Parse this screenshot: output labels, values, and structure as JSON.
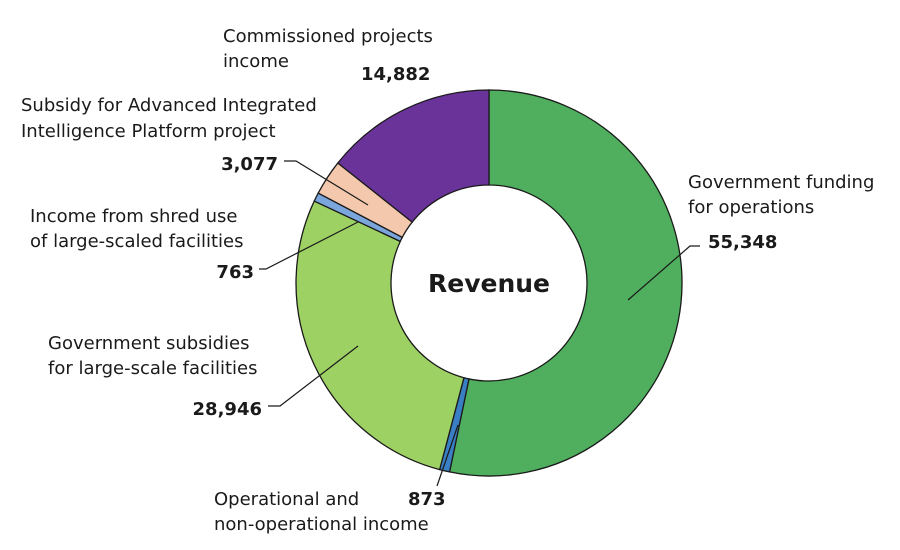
{
  "chart_data": {
    "type": "pie",
    "variant": "donut",
    "title": "Revenue",
    "unit": "",
    "slices": [
      {
        "key": "gov-funding-operations",
        "label_lines": [
          "Government funding",
          "for operations"
        ],
        "value": 55348,
        "value_label": "55,348",
        "color": "#4faf5e"
      },
      {
        "key": "operational-income",
        "label_lines": [
          "Operational and",
          "non-operational income"
        ],
        "value": 873,
        "value_label": "873",
        "color": "#3a7fc4"
      },
      {
        "key": "gov-subsidies-facilities",
        "label_lines": [
          "Government subsidies",
          "for large-scale facilities"
        ],
        "value": 28946,
        "value_label": "28,946",
        "color": "#9ed163"
      },
      {
        "key": "shared-use-income",
        "label_lines": [
          "Income from shred use",
          "of large-scaled facilities"
        ],
        "value": 763,
        "value_label": "763",
        "color": "#7aa6dc"
      },
      {
        "key": "aip-subsidy",
        "label_lines": [
          "Subsidy for Advanced Integrated",
          "Intelligence Platform project"
        ],
        "value": 3077,
        "value_label": "3,077",
        "color": "#f4c8ad"
      },
      {
        "key": "commissioned-projects",
        "label_lines": [
          "Commissioned projects",
          "income"
        ],
        "value": 14882,
        "value_label": "14,882",
        "color": "#6a3399"
      }
    ]
  }
}
